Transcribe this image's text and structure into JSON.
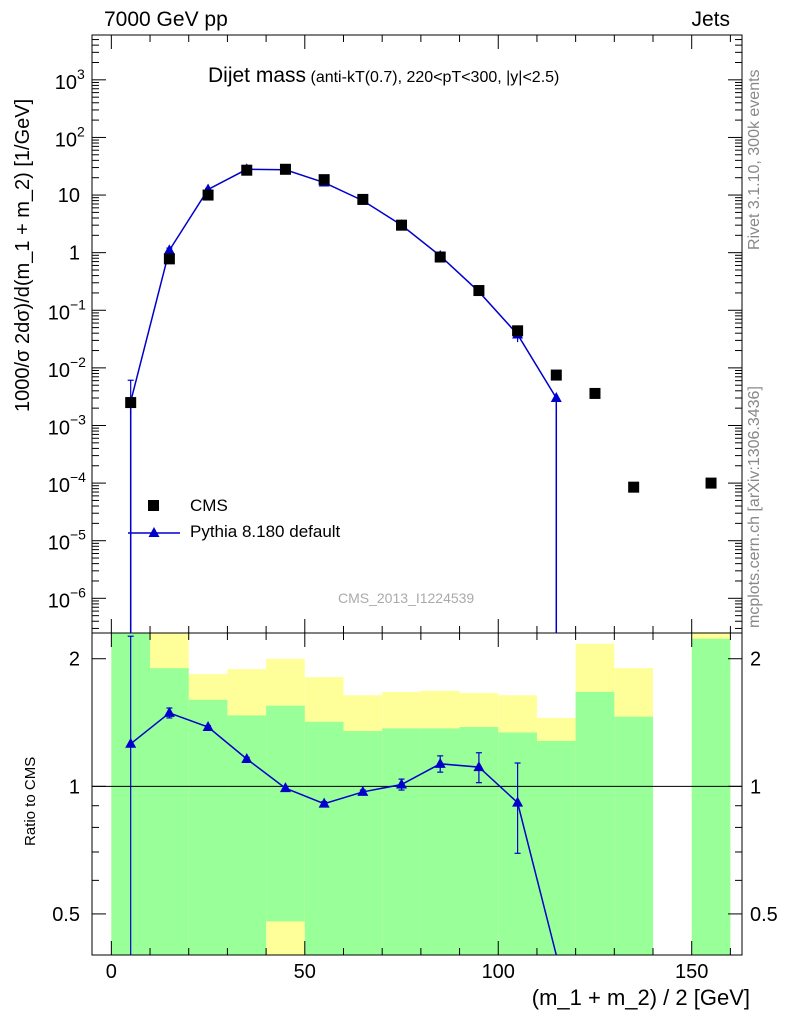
{
  "header": {
    "left": "7000 GeV pp",
    "right": "Jets"
  },
  "side_text": {
    "rivet": "Rivet 3.1.10,  300k events",
    "mcplots": "mcplots.cern.ch [arXiv:1306.3436]"
  },
  "chart_data": [
    {
      "type": "scatter",
      "panel": "main",
      "title": "Dijet mass",
      "subtitle": "(anti-kT(0.7), 220<pT<300, |y|<2.5)",
      "watermark": "CMS_2013_I1224539",
      "xlabel": "(m_1 + m_2) / 2 [GeV]",
      "ylabel": "1000/σ 2dσ)/d(m_1 + m_2) [1/GeV]",
      "xlim": [
        -5,
        163
      ],
      "ylim": [
        2.5e-07,
        6000
      ],
      "yscale": "log",
      "y_tick_labels": [
        "10^-6",
        "10^-5",
        "10^-4",
        "10^-3",
        "10^-2",
        "10^-1",
        "1",
        "10",
        "10^2",
        "10^3"
      ],
      "x_tick_labels": [
        "0",
        "50",
        "100",
        "150"
      ],
      "legend_position": "bottom-left",
      "series": [
        {
          "name": "CMS",
          "marker": "square",
          "color": "#000000",
          "x": [
            5,
            15,
            25,
            35,
            45,
            55,
            65,
            75,
            85,
            95,
            105,
            115,
            125,
            135,
            155
          ],
          "y": [
            0.0025,
            0.78,
            10,
            27,
            28,
            18.5,
            8.4,
            3.0,
            0.84,
            0.22,
            0.044,
            0.0075,
            0.0036,
            8.5e-05,
            0.0001
          ]
        },
        {
          "name": "Pythia 8.180 default",
          "marker": "triangle",
          "color": "#0000cc",
          "x": [
            5,
            15,
            25,
            35,
            45,
            55,
            65,
            75,
            85,
            95,
            105,
            115
          ],
          "y": [
            0.0026,
            1.1,
            12.5,
            28,
            27.5,
            16.5,
            8.0,
            3.0,
            0.88,
            0.21,
            0.038,
            0.003
          ],
          "y_err": [
            0.0035,
            0.1,
            0.5,
            0.7,
            0.7,
            0.5,
            0.3,
            0.1,
            0.04,
            0.015,
            0.01,
            0
          ]
        }
      ]
    },
    {
      "type": "line",
      "panel": "ratio",
      "ylabel": "Ratio to CMS",
      "xlabel": "(m_1 + m_2) / 2 [GeV]",
      "xlim": [
        -5,
        163
      ],
      "ylim": [
        0.4,
        2.3
      ],
      "yscale": "log",
      "y_tick_labels": [
        "0.5",
        "1",
        "2"
      ],
      "x_tick_labels": [
        "0",
        "50",
        "100",
        "150"
      ],
      "reference_line": 1,
      "bands": {
        "bin_edges": [
          0,
          10,
          20,
          30,
          40,
          50,
          60,
          70,
          80,
          90,
          100,
          110,
          120,
          130,
          140,
          150,
          160
        ],
        "yellow": [
          [
            0.4,
            2.3
          ],
          [
            0.4,
            2.3
          ],
          [
            0.4,
            1.84
          ],
          [
            0.4,
            1.89
          ],
          [
            0.4,
            2.0
          ],
          [
            0.4,
            1.81
          ],
          [
            0.4,
            1.64
          ],
          [
            0.4,
            1.67
          ],
          [
            0.4,
            1.68
          ],
          [
            0.4,
            1.66
          ],
          [
            0.4,
            1.64
          ],
          [
            0.4,
            1.45
          ],
          [
            0.4,
            2.17
          ],
          [
            0.4,
            1.9
          ],
          [
            null,
            null
          ],
          [
            0.4,
            2.3
          ]
        ],
        "green": [
          [
            0.4,
            2.3
          ],
          [
            0.4,
            1.9
          ],
          [
            0.4,
            1.6
          ],
          [
            0.4,
            1.47
          ],
          [
            0.48,
            1.55
          ],
          [
            0.4,
            1.42
          ],
          [
            0.4,
            1.35
          ],
          [
            0.4,
            1.37
          ],
          [
            0.4,
            1.37
          ],
          [
            0.4,
            1.38
          ],
          [
            0.4,
            1.34
          ],
          [
            0.4,
            1.28
          ],
          [
            0.4,
            1.67
          ],
          [
            0.4,
            1.46
          ],
          [
            null,
            null
          ],
          [
            0.4,
            2.23
          ]
        ]
      },
      "series": [
        {
          "name": "Pythia 8.180 default",
          "color": "#0000cc",
          "x": [
            5,
            15,
            25,
            35,
            45,
            55,
            65,
            75,
            85,
            95,
            105,
            115
          ],
          "y": [
            1.26,
            1.49,
            1.38,
            1.16,
            0.99,
            0.91,
            0.97,
            1.01,
            1.13,
            1.11,
            0.915,
            0.39
          ],
          "y_err_low": [
            1.0,
            0.04,
            0.01,
            0.01,
            0.01,
            0.01,
            0.01,
            0.03,
            0.05,
            0.09,
            0.22,
            0
          ],
          "y_err_high": [
            1.0,
            0.04,
            0.01,
            0.01,
            0.01,
            0.01,
            0.01,
            0.03,
            0.05,
            0.09,
            0.22,
            0
          ]
        }
      ]
    }
  ]
}
